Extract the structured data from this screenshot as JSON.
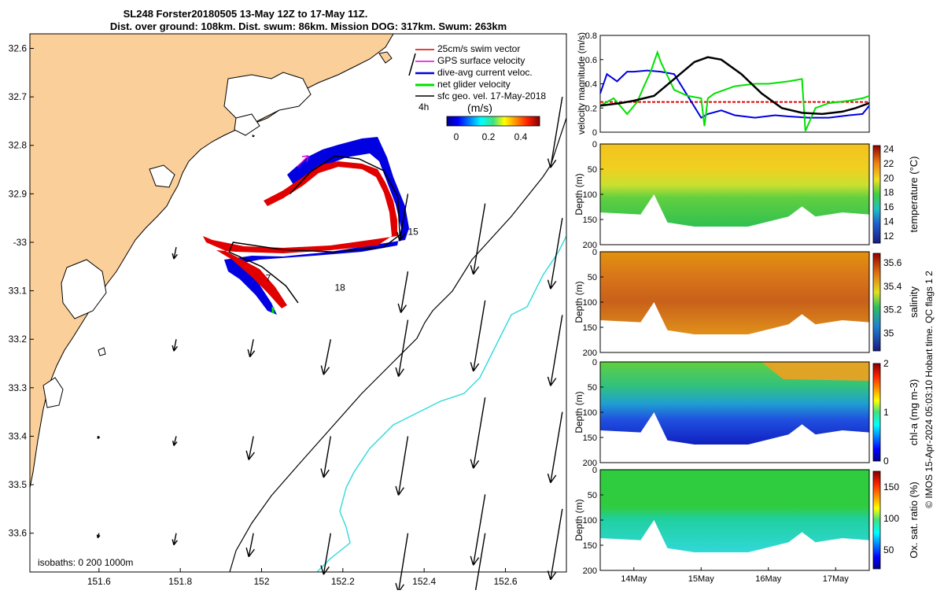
{
  "title": {
    "line1": "SL248 Forster20180505 13-May 12Z to 17-May 11Z.",
    "line2": "Dist. over ground: 108km. Dist. swum: 86km. Mission DOG: 317km. Swum: 263km"
  },
  "colors": {
    "land": "#fbcf9a",
    "swim": "#e00000",
    "gps": "#e000e0",
    "current": "#0000e0",
    "net": "#00e000",
    "geo": "#000000",
    "isobath200": "#000000",
    "isobath1000": "#30dada"
  },
  "chart_data": [
    {
      "type": "map",
      "name": "glider track map",
      "xlim": [
        151.43,
        152.75
      ],
      "ylim": [
        32.57,
        33.68
      ],
      "y_reversed": true,
      "x_ticks": [
        151.6,
        151.8,
        152,
        152.2,
        152.4,
        152.6
      ],
      "x_tick_labels": [
        "151.6",
        "151.8",
        "152",
        "152.2",
        "152.4",
        "152.6"
      ],
      "y_ticks": [
        32.6,
        32.7,
        32.8,
        32.9,
        33.0,
        33.1,
        33.2,
        33.3,
        33.4,
        33.5,
        33.6
      ],
      "y_tick_labels": [
        "32.6",
        "32.7",
        "32.8",
        "32.9",
        "-33",
        "33.1",
        "33.2",
        "33.3",
        "33.4",
        "33.5",
        "33.6"
      ],
      "legend": [
        {
          "label": "25cm/s swim vector",
          "key": "swim"
        },
        {
          "label": "GPS surface velocity",
          "key": "gps"
        },
        {
          "label": "dive-avg current veloc.",
          "key": "current"
        },
        {
          "label": "net glider velocity",
          "key": "net"
        },
        {
          "label": "sfc geo. vel. 17-May-2018",
          "key": "geo"
        }
      ],
      "scale_label": "4h",
      "colorbar": {
        "label": "(m/s)",
        "ticks": [
          "0",
          "0.2",
          "0.4"
        ],
        "range": [
          0,
          0.5
        ]
      },
      "isobaths_label": "isobaths: 0   200  1000m",
      "track_day_labels": [
        {
          "text": "15",
          "lon": 152.36,
          "lat": 32.985
        },
        {
          "text": "7",
          "lon": 152.01,
          "lat": 33.08
        },
        {
          "text": "18",
          "lon": 152.18,
          "lat": 33.1
        }
      ],
      "track": [
        [
          152.07,
          32.9
        ],
        [
          152.12,
          32.855
        ],
        [
          152.18,
          32.822
        ],
        [
          152.24,
          32.828
        ],
        [
          152.3,
          32.852
        ],
        [
          152.335,
          32.905
        ],
        [
          152.34,
          32.985
        ],
        [
          152.3,
          33.01
        ],
        [
          152.18,
          33.02
        ],
        [
          152.05,
          33.015
        ],
        [
          151.93,
          33.0
        ],
        [
          151.92,
          33.02
        ],
        [
          152.0,
          33.05
        ],
        [
          152.06,
          33.09
        ],
        [
          152.09,
          33.125
        ]
      ],
      "geo_arrows": [
        {
          "lon": 151.79,
          "lat": 33.01,
          "u": -0.02,
          "v": -0.1
        },
        {
          "lon": 151.79,
          "lat": 33.2,
          "u": -0.02,
          "v": -0.1
        },
        {
          "lon": 151.98,
          "lat": 33.2,
          "u": -0.03,
          "v": -0.15
        },
        {
          "lon": 152.17,
          "lat": 33.2,
          "u": -0.06,
          "v": -0.3
        },
        {
          "lon": 152.36,
          "lat": 33.16,
          "u": -0.08,
          "v": -0.48
        },
        {
          "lon": 152.36,
          "lat": 32.9,
          "u": -0.07,
          "v": -0.4
        },
        {
          "lon": 152.36,
          "lat": 33.06,
          "u": -0.06,
          "v": -0.35
        },
        {
          "lon": 152.55,
          "lat": 32.92,
          "u": -0.1,
          "v": -0.6
        },
        {
          "lon": 152.55,
          "lat": 33.12,
          "u": -0.1,
          "v": -0.6
        },
        {
          "lon": 152.55,
          "lat": 33.32,
          "u": -0.1,
          "v": -0.6
        },
        {
          "lon": 152.55,
          "lat": 33.52,
          "u": -0.1,
          "v": -0.6
        },
        {
          "lon": 152.74,
          "lat": 32.7,
          "u": -0.1,
          "v": -0.6
        },
        {
          "lon": 152.74,
          "lat": 32.95,
          "u": -0.1,
          "v": -0.6
        },
        {
          "lon": 152.74,
          "lat": 33.15,
          "u": -0.1,
          "v": -0.6
        },
        {
          "lon": 152.74,
          "lat": 33.35,
          "u": -0.1,
          "v": -0.6
        },
        {
          "lon": 152.74,
          "lat": 33.55,
          "u": -0.1,
          "v": -0.6
        },
        {
          "lon": 151.6,
          "lat": 33.4,
          "u": -0.01,
          "v": -0.02
        },
        {
          "lon": 151.79,
          "lat": 33.4,
          "u": -0.02,
          "v": -0.08
        },
        {
          "lon": 151.98,
          "lat": 33.4,
          "u": -0.04,
          "v": -0.2
        },
        {
          "lon": 152.17,
          "lat": 33.4,
          "u": -0.06,
          "v": -0.35
        },
        {
          "lon": 152.36,
          "lat": 33.4,
          "u": -0.08,
          "v": -0.5
        },
        {
          "lon": 151.6,
          "lat": 33.6,
          "u": -0.01,
          "v": -0.04
        },
        {
          "lon": 151.79,
          "lat": 33.6,
          "u": -0.02,
          "v": -0.1
        },
        {
          "lon": 151.98,
          "lat": 33.6,
          "u": -0.04,
          "v": -0.2
        },
        {
          "lon": 152.17,
          "lat": 33.6,
          "u": -0.06,
          "v": -0.35
        },
        {
          "lon": 152.36,
          "lat": 33.6,
          "u": -0.08,
          "v": -0.5
        },
        {
          "lon": 152.55,
          "lat": 33.6,
          "u": -0.1,
          "v": -0.6
        },
        {
          "lon": 151.98,
          "lat": 32.78,
          "u": -0.005,
          "v": -0.01
        }
      ]
    },
    {
      "type": "line",
      "name": "velocity magnitude",
      "ylabel": "velocity magnitude (m/s)",
      "xlim": [
        13.5,
        17.5
      ],
      "ylim": [
        0,
        0.8
      ],
      "y_ticks": [
        0,
        0.2,
        0.4,
        0.6,
        0.8
      ],
      "y_tick_labels": [
        "0",
        "0.2",
        "0.4",
        "0.6",
        "0.8"
      ],
      "series": [
        {
          "name": "swim",
          "color_key": "swim",
          "style": "dashed",
          "x": [
            13.5,
            17.5
          ],
          "y": [
            0.25,
            0.25
          ]
        },
        {
          "name": "dive-avg current",
          "color_key": "current",
          "x": [
            13.5,
            13.6,
            13.75,
            13.9,
            14.0,
            14.2,
            14.4,
            14.6,
            14.8,
            15.0,
            15.1,
            15.3,
            15.5,
            15.8,
            16.1,
            16.3,
            16.6,
            16.9,
            17.2,
            17.4,
            17.5
          ],
          "y": [
            0.32,
            0.48,
            0.42,
            0.5,
            0.5,
            0.51,
            0.5,
            0.48,
            0.3,
            0.12,
            0.15,
            0.18,
            0.14,
            0.12,
            0.14,
            0.13,
            0.12,
            0.12,
            0.14,
            0.15,
            0.22
          ]
        },
        {
          "name": "net glider velocity",
          "color_key": "net",
          "x": [
            13.5,
            13.7,
            13.9,
            14.05,
            14.15,
            14.25,
            14.35,
            14.4,
            14.6,
            14.8,
            15.0,
            15.05,
            15.1,
            15.2,
            15.5,
            15.8,
            16.0,
            16.3,
            16.5,
            16.55,
            16.7,
            16.9,
            17.2,
            17.4,
            17.5
          ],
          "y": [
            0.22,
            0.28,
            0.15,
            0.25,
            0.38,
            0.5,
            0.66,
            0.58,
            0.35,
            0.3,
            0.28,
            0.05,
            0.28,
            0.32,
            0.38,
            0.4,
            0.4,
            0.42,
            0.44,
            0.01,
            0.2,
            0.24,
            0.26,
            0.28,
            0.3
          ]
        },
        {
          "name": "net glider speed (black)",
          "color_key": "geo",
          "x": [
            13.5,
            13.8,
            14.0,
            14.3,
            14.6,
            14.9,
            15.1,
            15.3,
            15.6,
            15.9,
            16.2,
            16.5,
            16.8,
            17.1,
            17.3,
            17.5
          ],
          "y": [
            0.22,
            0.24,
            0.26,
            0.3,
            0.44,
            0.58,
            0.62,
            0.6,
            0.48,
            0.32,
            0.2,
            0.16,
            0.15,
            0.17,
            0.2,
            0.24
          ]
        }
      ]
    },
    {
      "type": "heatmap",
      "name": "temperature section",
      "ylabel": "Depth (m)",
      "cbar_label": "temperature (°C)",
      "ylim": [
        0,
        200
      ],
      "y_ticks": [
        0,
        50,
        100,
        150,
        200
      ],
      "y_tick_labels": [
        "0",
        "50",
        "100",
        "150",
        "200"
      ],
      "cbar_ticks": [
        "12",
        "14",
        "16",
        "18",
        "20",
        "22",
        "24"
      ],
      "cbar_range": [
        11,
        24.5
      ],
      "surface_value": 22.2,
      "deep_value": 16.2,
      "colormap": "thermal"
    },
    {
      "type": "heatmap",
      "name": "salinity section",
      "ylabel": "Depth (m)",
      "cbar_label": "salinity",
      "ylim": [
        0,
        200
      ],
      "y_ticks": [
        0,
        50,
        100,
        150,
        200
      ],
      "y_tick_labels": [
        "0",
        "50",
        "100",
        "150",
        "200"
      ],
      "cbar_ticks": [
        "35",
        "35.2",
        "35.4",
        "35.6"
      ],
      "cbar_range": [
        34.85,
        35.68
      ],
      "surface_value": 35.45,
      "deep_value": 35.55,
      "colormap": "haline"
    },
    {
      "type": "heatmap",
      "name": "chlorophyll section",
      "ylabel": "Depth (m)",
      "cbar_label": "chl-a (mg m-3)",
      "ylim": [
        0,
        200
      ],
      "y_ticks": [
        0,
        50,
        100,
        150,
        200
      ],
      "y_tick_labels": [
        "0",
        "50",
        "100",
        "150",
        "200"
      ],
      "cbar_ticks": [
        "0",
        "1",
        "2"
      ],
      "cbar_range": [
        0,
        2
      ],
      "surface_value": 1.1,
      "deep_value": 0.3,
      "colormap": "jet"
    },
    {
      "type": "heatmap",
      "name": "oxygen saturation section",
      "ylabel": "Depth (m)",
      "cbar_label": "Ox. sat. ratio (%)",
      "ylim": [
        0,
        200
      ],
      "y_ticks": [
        0,
        50,
        100,
        150,
        200
      ],
      "y_tick_labels": [
        "0",
        "50",
        "100",
        "150",
        "200"
      ],
      "cbar_ticks": [
        "50",
        "100",
        "150"
      ],
      "cbar_range": [
        20,
        175
      ],
      "surface_value": 108,
      "deep_value": 85,
      "colormap": "jet",
      "x_ticks": [
        14,
        15,
        16,
        17
      ],
      "x_tick_labels": [
        "14May",
        "15May",
        "16May",
        "17May"
      ]
    }
  ],
  "credit": "© IMOS 15-Apr-2024 05:03:10 Hobart time. QC flags 1  2"
}
